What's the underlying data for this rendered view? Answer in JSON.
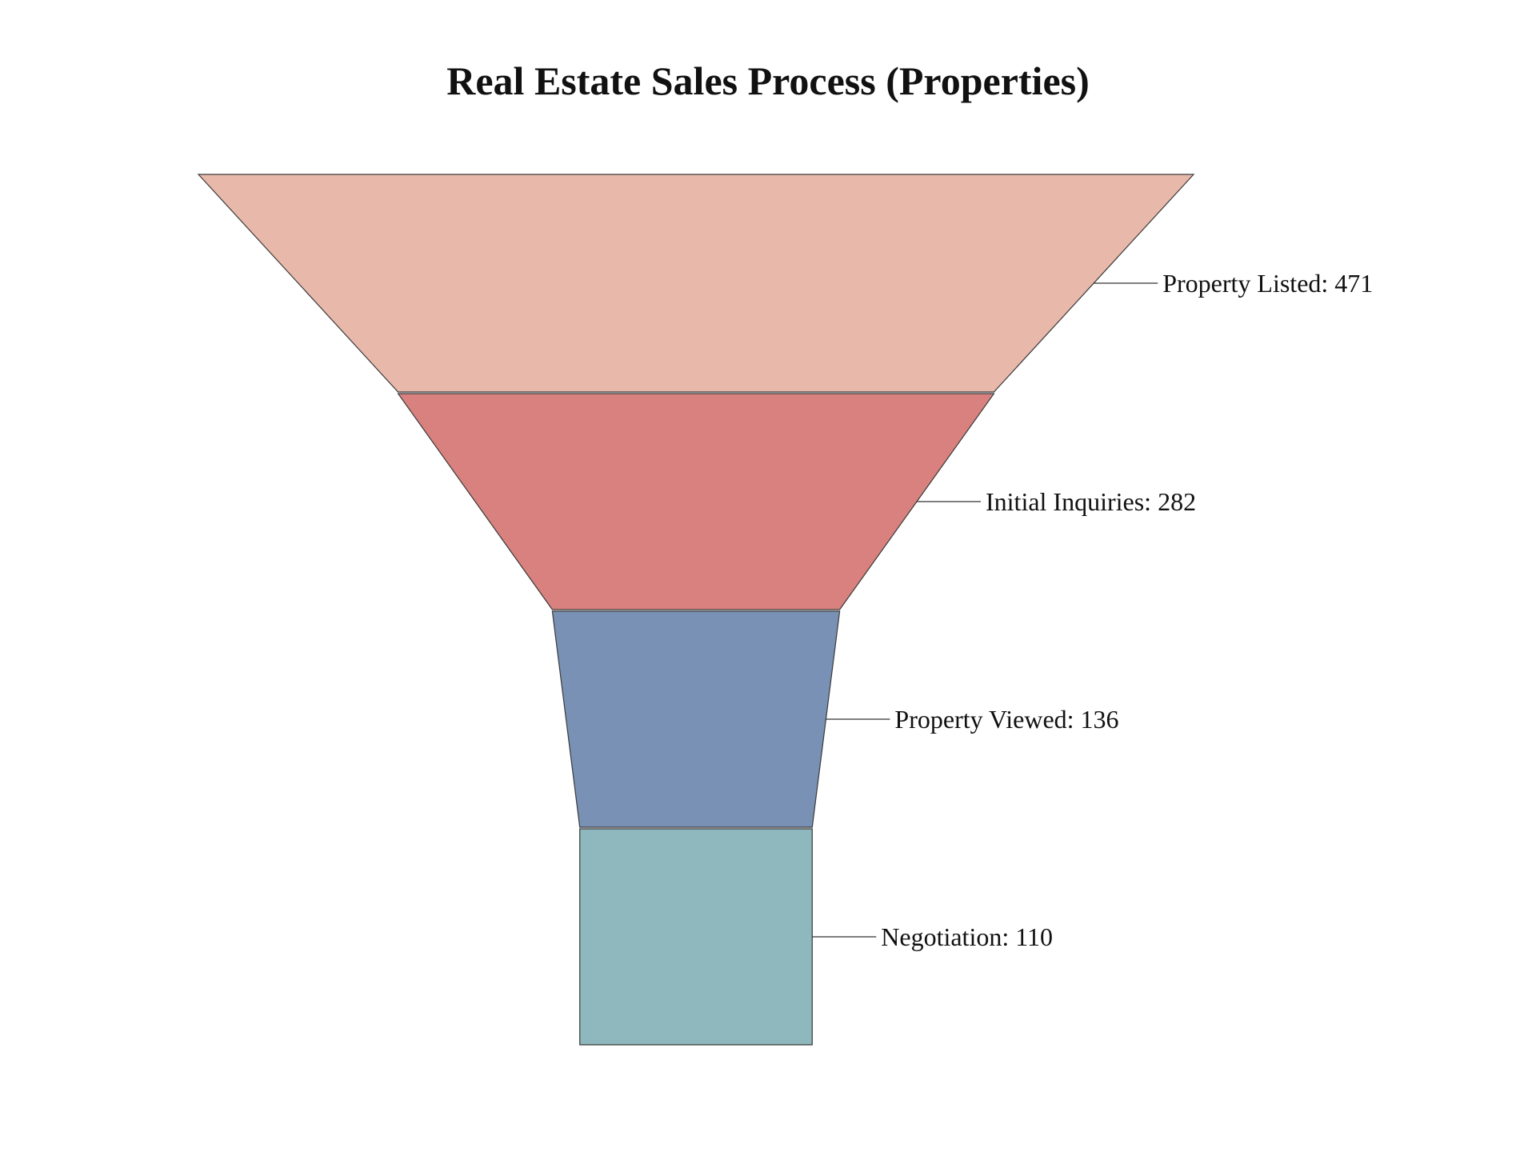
{
  "chart_data": {
    "type": "funnel",
    "title": "Real Estate Sales Process (Properties)",
    "stages": [
      {
        "name": "Property Listed",
        "value": 471,
        "color": "#e8b9aa"
      },
      {
        "name": "Initial Inquiries",
        "value": 282,
        "color": "#d8817e"
      },
      {
        "name": "Property Viewed",
        "value": 136,
        "color": "#7891b5"
      },
      {
        "name": "Negotiation",
        "value": 110,
        "color": "#8eb7be"
      }
    ]
  }
}
